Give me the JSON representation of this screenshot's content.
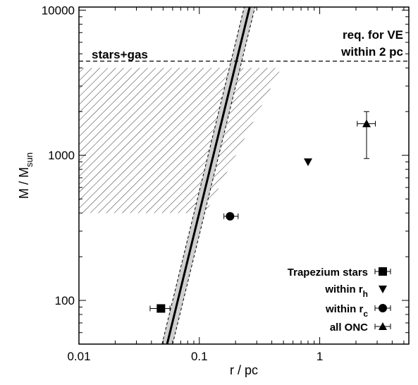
{
  "chart_data": {
    "type": "scatter",
    "title": "",
    "xlabel": "r / pc",
    "ylabel": "M / M",
    "ylabel_sub": "sun",
    "xscale": "log",
    "yscale": "log",
    "xlim": [
      0.01,
      5.5
    ],
    "ylim": [
      50,
      10500
    ],
    "grid": false,
    "legend_position": "bottom-right",
    "x_ticks": [
      {
        "value": 0.01,
        "label": "0.01"
      },
      {
        "value": 0.1,
        "label": "0.1"
      },
      {
        "value": 1,
        "label": "1"
      }
    ],
    "y_ticks": [
      {
        "value": 100,
        "label": "100"
      },
      {
        "value": 1000,
        "label": "1000"
      },
      {
        "value": 10000,
        "label": "10000"
      }
    ],
    "annotations": {
      "stars_gas": "stars+gas",
      "req_line1": "req. for VE",
      "req_line2": "within 2 pc"
    },
    "hlines": [
      {
        "y": 4450,
        "style": "dashed"
      }
    ],
    "shaded_region": {
      "pattern": "diagonal-hatch",
      "y_range": [
        400,
        4000
      ],
      "left_x": 0.01,
      "right_edge": [
        [
          0.113,
          400
        ],
        [
          0.48,
          4000
        ]
      ]
    },
    "model_band": {
      "central": [
        [
          0.054,
          50
        ],
        [
          0.262,
          10500
        ]
      ],
      "upper": [
        [
          0.06,
          50
        ],
        [
          0.29,
          10500
        ]
      ],
      "lower": [
        [
          0.049,
          50
        ],
        [
          0.236,
          10500
        ]
      ]
    },
    "series": [
      {
        "name": "Trapezium stars",
        "marker": "square",
        "points": [
          {
            "x": 0.048,
            "y": 88,
            "xerr": [
              0.039,
              0.057
            ]
          }
        ]
      },
      {
        "name": "within r",
        "name_sub": "h",
        "marker": "triangle-down",
        "points": [
          {
            "x": 0.8,
            "y": 900
          }
        ]
      },
      {
        "name": "within r",
        "name_sub": "c",
        "marker": "circle",
        "points": [
          {
            "x": 0.18,
            "y": 380,
            "xerr": [
              0.16,
              0.21
            ]
          }
        ]
      },
      {
        "name": "all ONC",
        "marker": "triangle-up",
        "points": [
          {
            "x": 2.45,
            "y": 1650,
            "xerr": [
              2.05,
              2.9
            ],
            "yerr": [
              950,
              2000
            ]
          }
        ]
      }
    ]
  }
}
